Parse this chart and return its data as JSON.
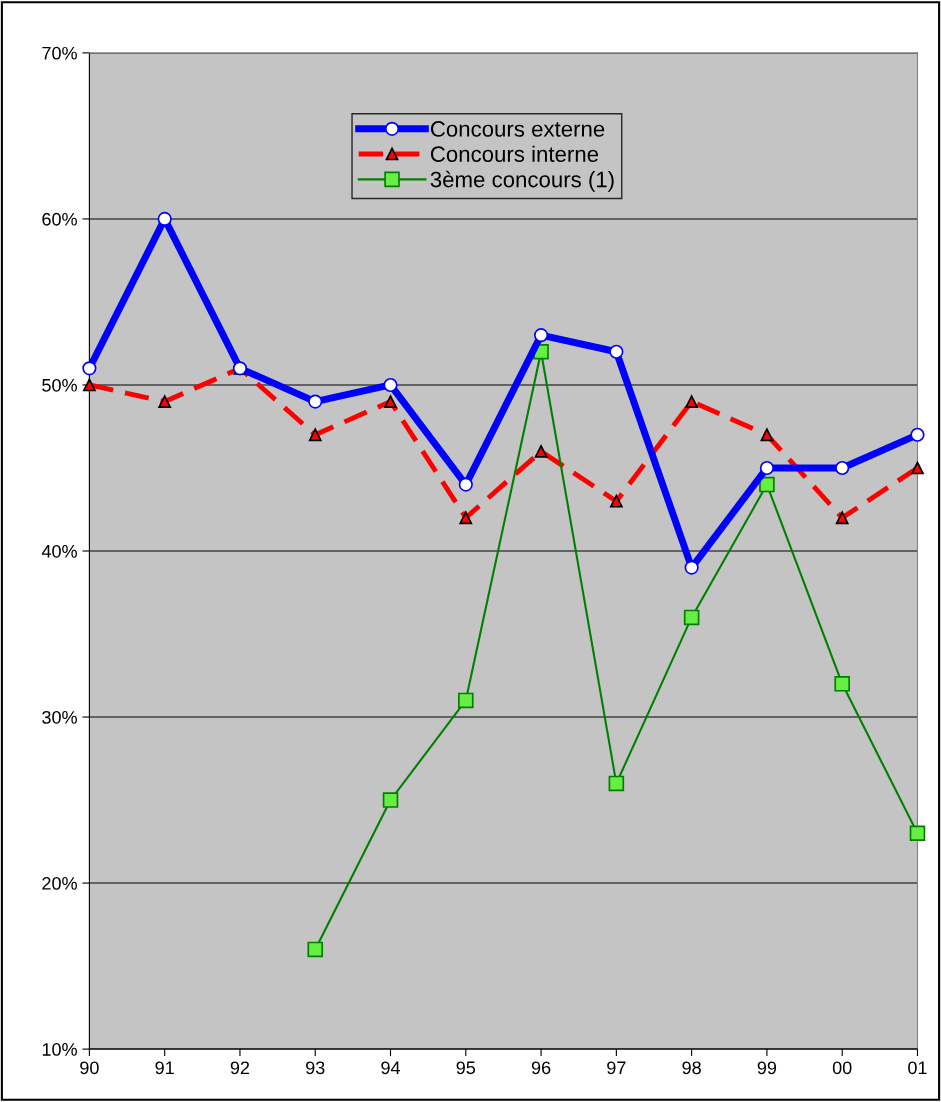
{
  "chart_data": {
    "type": "line",
    "categories": [
      "90",
      "91",
      "92",
      "93",
      "94",
      "95",
      "96",
      "97",
      "98",
      "99",
      "00",
      "01"
    ],
    "series": [
      {
        "name": "Concours externe",
        "color": "#0000ff",
        "marker": "circle",
        "line_style": "solid",
        "values": [
          51,
          60,
          51,
          49,
          50,
          44,
          53,
          52,
          39,
          45,
          45,
          47
        ]
      },
      {
        "name": "Concours interne",
        "color": "#ff0000",
        "marker": "triangle",
        "line_style": "dashed",
        "values": [
          50,
          49,
          51,
          47,
          49,
          42,
          46,
          43,
          49,
          47,
          42,
          45
        ]
      },
      {
        "name": "3ème concours (1)",
        "color": "#008000",
        "marker": "square",
        "line_style": "solid",
        "values": [
          null,
          null,
          null,
          16,
          25,
          31,
          52,
          26,
          36,
          44,
          32,
          23
        ]
      }
    ],
    "ylim": [
      10,
      70
    ],
    "yticks": [
      {
        "value": 10,
        "label": "10%"
      },
      {
        "value": 20,
        "label": "20%"
      },
      {
        "value": 30,
        "label": "30%"
      },
      {
        "value": 40,
        "label": "40%"
      },
      {
        "value": 50,
        "label": "50%"
      },
      {
        "value": 60,
        "label": "60%"
      },
      {
        "value": 70,
        "label": "70%"
      }
    ],
    "grid": "y",
    "legend": "top"
  }
}
